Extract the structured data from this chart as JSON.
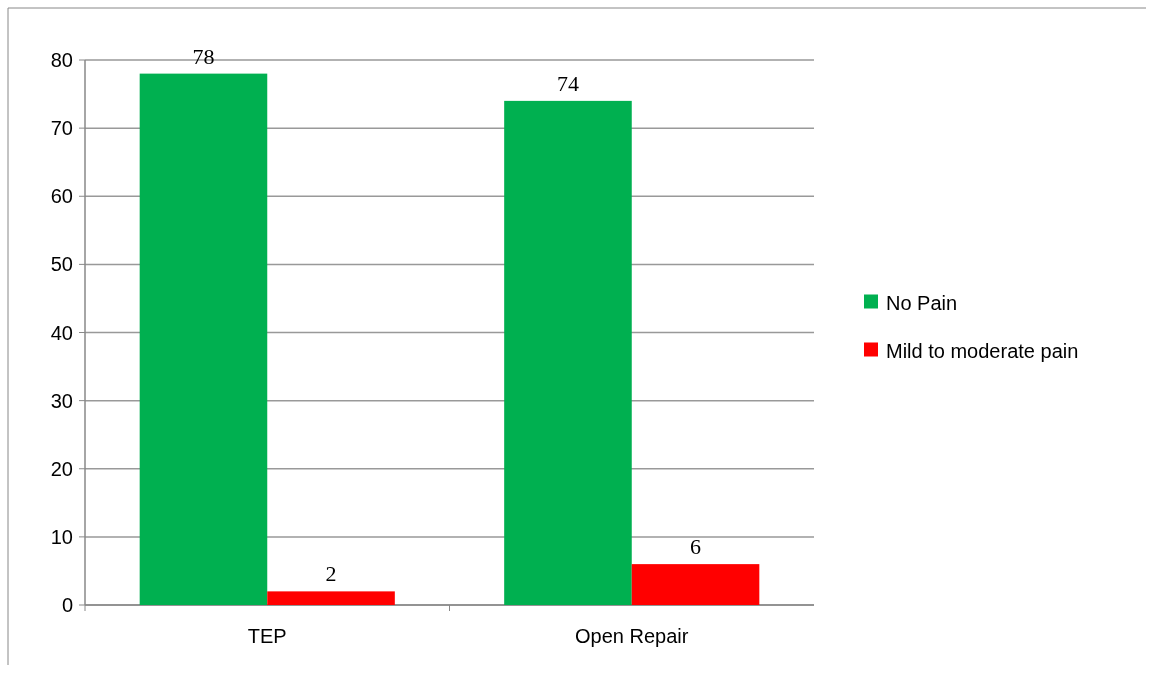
{
  "chart_data": {
    "type": "bar",
    "categories": [
      "TEP",
      "Open Repair"
    ],
    "series": [
      {
        "name": "No Pain",
        "color": "#00b050",
        "values": [
          78,
          74
        ]
      },
      {
        "name": "Mild to moderate pain",
        "color": "#ff0000",
        "values": [
          2,
          6
        ]
      }
    ],
    "ylim": [
      0,
      80
    ],
    "yticks": [
      0,
      10,
      20,
      30,
      40,
      50,
      60,
      70,
      80
    ],
    "grid": "y",
    "legend": "right",
    "data_labels": true
  }
}
